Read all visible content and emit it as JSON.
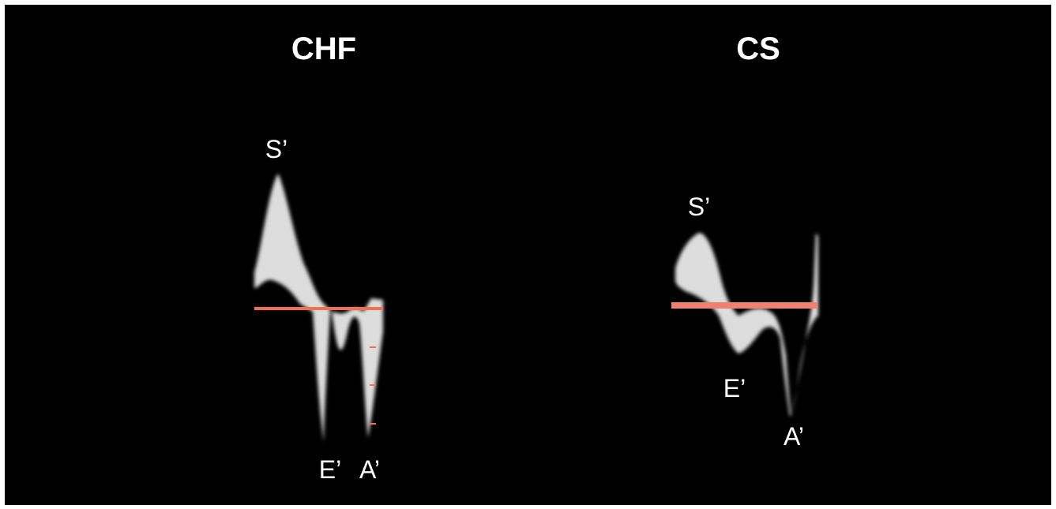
{
  "panels": [
    {
      "title": "CHF",
      "labels": {
        "s": "S’",
        "e": "E’",
        "a": "A’"
      }
    },
    {
      "title": "CS",
      "labels": {
        "s": "S’",
        "e": "E’",
        "a": "A’"
      }
    }
  ]
}
